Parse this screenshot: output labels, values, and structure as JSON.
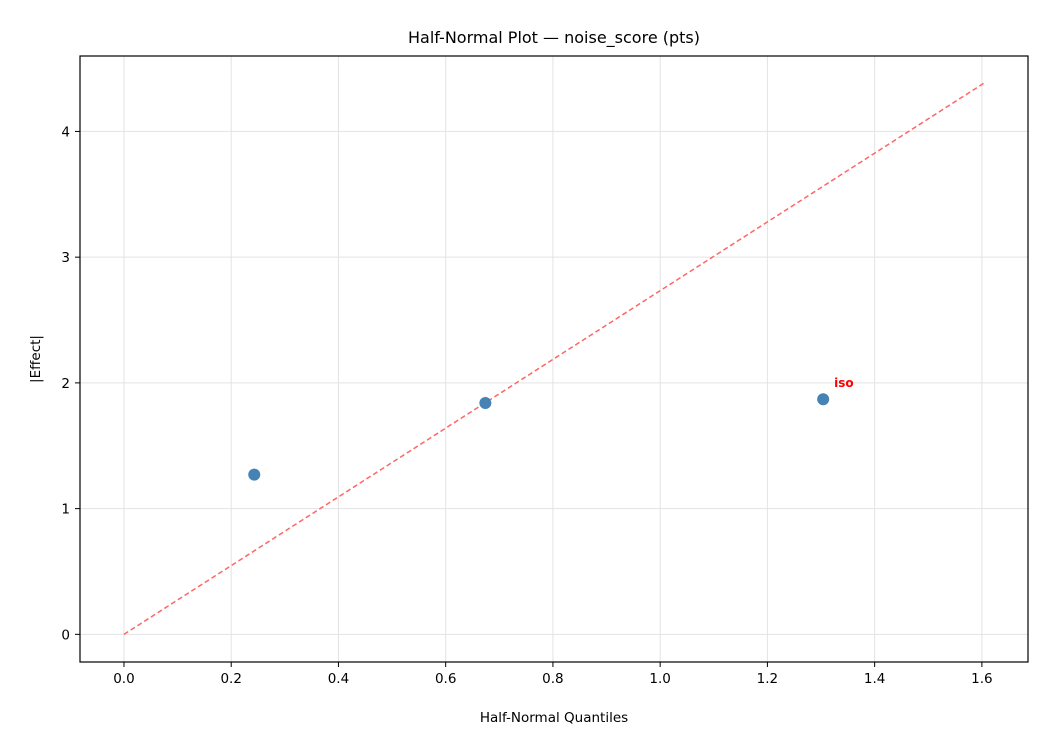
{
  "chart_data": {
    "type": "scatter",
    "title": "Half-Normal Plot — noise_score (pts)",
    "xlabel": "Half-Normal Quantiles",
    "ylabel": "|Effect|",
    "xlim": [
      -0.082,
      1.686
    ],
    "ylim": [
      -0.22,
      4.6
    ],
    "xticks": [
      "0.0",
      "0.2",
      "0.4",
      "0.6",
      "0.8",
      "1.0",
      "1.2",
      "1.4",
      "1.6"
    ],
    "yticks": [
      "0",
      "1",
      "2",
      "3",
      "4"
    ],
    "grid": true,
    "points": [
      {
        "x": 0.243,
        "y": 1.27,
        "label": ""
      },
      {
        "x": 0.674,
        "y": 1.84,
        "label": ""
      },
      {
        "x": 1.304,
        "y": 1.87,
        "label": "iso"
      }
    ],
    "reference_line": {
      "x": [
        0,
        1.606
      ],
      "y": [
        0,
        4.39
      ],
      "style": "dashed"
    },
    "colors": {
      "points": "#4682b4",
      "line": "#ff6666",
      "annotation": "#ff0000"
    }
  }
}
